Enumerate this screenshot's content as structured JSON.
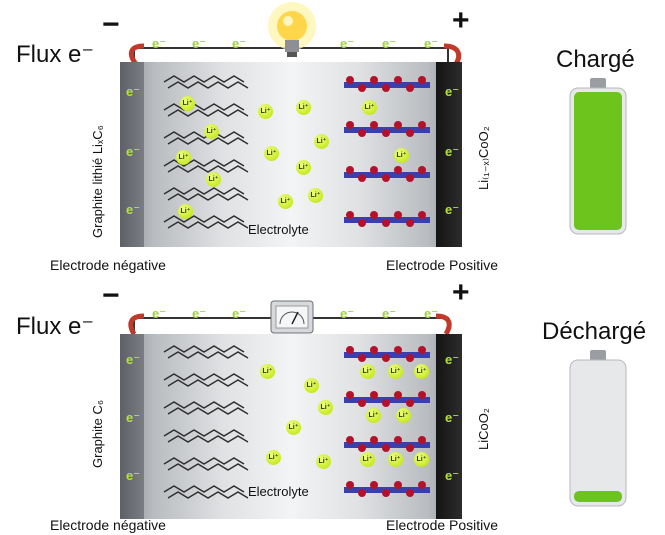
{
  "flux_label": "Flux e⁻",
  "minus_sign": "−",
  "plus_sign": "+",
  "electron": "e⁻",
  "li_ion": "Li⁺",
  "electrolyte": "Electrolyte",
  "neg_electrode_label": "Electrode négative",
  "pos_electrode_label": "Electrode Positive",
  "top": {
    "state": "Chargé",
    "neg_material": "Graphite lithié LiₓC₆",
    "pos_material": "Li₍₁₋ₓ₎CoO₂",
    "battery_level": 1.0,
    "wire_device": "lightbulb-icon"
  },
  "bottom": {
    "state": "Déchargé",
    "neg_material": "Graphite C₆",
    "pos_material": "LiCoO₂",
    "battery_level": 0.08,
    "wire_device": "meter-icon"
  },
  "colors": {
    "electron_green": "#b4e23a",
    "li_ion_green": "#c9ea1f",
    "arrow_red": "#c0392b",
    "battery_green": "#6cc41c"
  }
}
